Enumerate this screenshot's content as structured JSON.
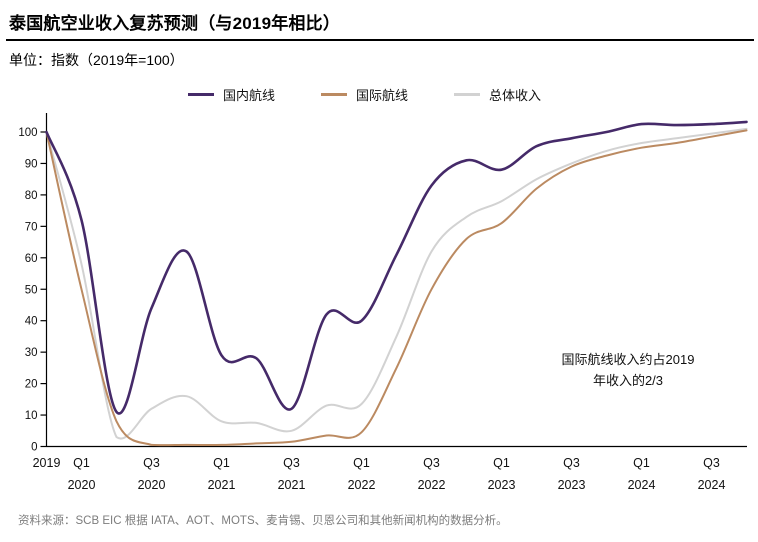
{
  "header": {
    "title": "泰国航空业收入复苏预测（与2019年相比）",
    "unit_label": "单位：指数（2019年=100）"
  },
  "legend": [
    {
      "label": "国内航线",
      "color": "#452a69"
    },
    {
      "label": "国际航线",
      "color": "#bb8a61"
    },
    {
      "label": "总体收入",
      "color": "#d2d2d2"
    }
  ],
  "annotation": {
    "line1": "国际航线收入约占2019",
    "line2": "年收入的2/3"
  },
  "footer": {
    "source": "资料来源：SCB EIC 根据 IATA、AOT、MOTS、麦肯锡、贝恩公司和其他新闻机构的数据分析。"
  },
  "chart_data": {
    "type": "line",
    "title": "泰国航空业收入复苏预测（与2019年相比）",
    "ylabel": "指数（2019年=100）",
    "ylim": [
      0,
      100
    ],
    "grid": false,
    "legend_position": "top",
    "yticks": [
      0,
      10,
      20,
      30,
      40,
      50,
      60,
      70,
      80,
      90,
      100
    ],
    "categories": [
      "2019",
      "Q1 2020",
      "Q2 2020",
      "Q3 2020",
      "Q4 2020",
      "Q1 2021",
      "Q2 2021",
      "Q3 2021",
      "Q4 2021",
      "Q1 2022",
      "Q2 2022",
      "Q3 2022",
      "Q4 2022",
      "Q1 2023",
      "Q2 2023",
      "Q3 2023",
      "Q4 2023",
      "Q1 2024",
      "Q2 2024",
      "Q3 2024",
      "Q4 2024"
    ],
    "x_ticks": [
      {
        "q": "2019",
        "year": "",
        "index": 0
      },
      {
        "q": "Q1",
        "year": "2020",
        "index": 1
      },
      {
        "q": "Q3",
        "year": "2020",
        "index": 3
      },
      {
        "q": "Q1",
        "year": "2021",
        "index": 5
      },
      {
        "q": "Q3",
        "year": "2021",
        "index": 7
      },
      {
        "q": "Q1",
        "year": "2022",
        "index": 9
      },
      {
        "q": "Q3",
        "year": "2022",
        "index": 11
      },
      {
        "q": "Q1",
        "year": "2023",
        "index": 13
      },
      {
        "q": "Q3",
        "year": "2023",
        "index": 15
      },
      {
        "q": "Q1",
        "year": "2024",
        "index": 17
      },
      {
        "q": "Q3",
        "year": "2024",
        "index": 19
      }
    ],
    "series": [
      {
        "name": "国内航线",
        "color": "#452a69",
        "values": [
          100,
          72,
          11,
          44,
          62,
          29,
          28,
          12,
          42,
          40,
          61,
          83,
          91,
          88,
          95.5,
          98,
          100,
          102.5,
          102.2,
          102.5,
          103.2
        ]
      },
      {
        "name": "国际航线",
        "color": "#bb8a61",
        "values": [
          100,
          50,
          8,
          0.5,
          0.5,
          0.5,
          1,
          1.5,
          3.5,
          4.5,
          25,
          50,
          66,
          71,
          82,
          89,
          92.5,
          95,
          96.5,
          98.5,
          100.5
        ]
      },
      {
        "name": "总体收入",
        "color": "#d2d2d2",
        "values": [
          100,
          58,
          3,
          12,
          16,
          8,
          7.5,
          5,
          13,
          13.5,
          35,
          62,
          73,
          78,
          85,
          90,
          94,
          96.5,
          98,
          99.5,
          101
        ]
      }
    ],
    "axis_color": "#000000"
  }
}
